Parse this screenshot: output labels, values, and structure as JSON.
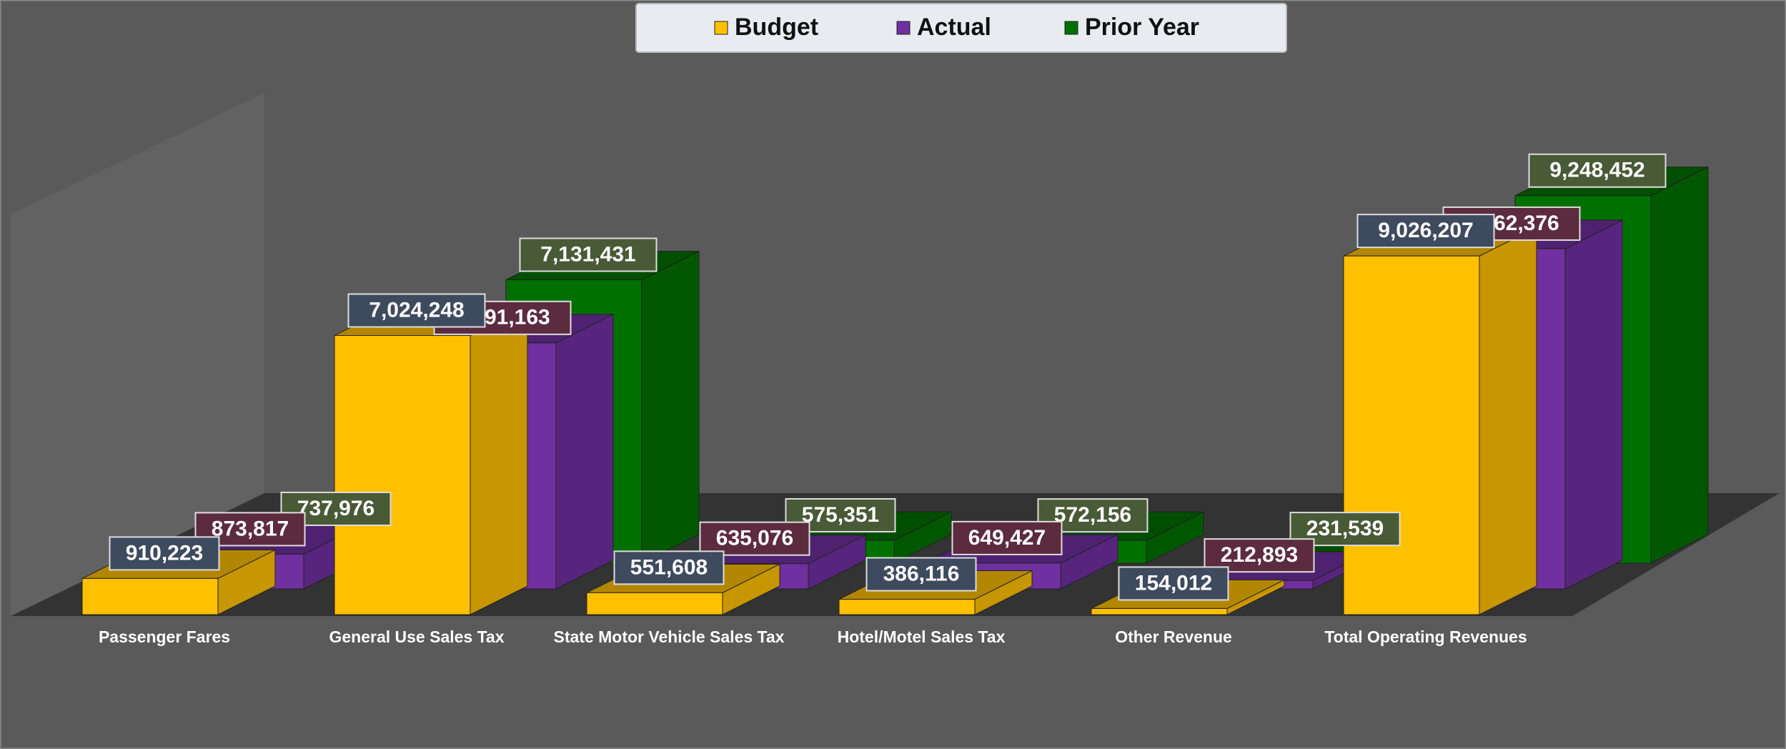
{
  "chart_data": {
    "type": "bar3d",
    "categories": [
      "Passenger Fares",
      "General Use Sales Tax",
      "State Motor Vehicle Sales Tax",
      "Hotel/Motel Sales Tax",
      "Other Revenue",
      "Total Operating Revenues"
    ],
    "series": [
      {
        "name": "Budget",
        "color": "#ffc000",
        "values": [
          910223,
          7024248,
          551608,
          386116,
          154012,
          9026207
        ],
        "value_labels": [
          "910,223",
          "7,024,248",
          "551,608",
          "386,116",
          "154,012",
          "9,026,207"
        ]
      },
      {
        "name": "Actual",
        "color": "#7030a0",
        "values": [
          873817,
          6191163,
          635076,
          649427,
          212893,
          8562376
        ],
        "value_labels": [
          "873,817",
          "6,191,163",
          "635,076",
          "649,427",
          "212,893",
          "8,562,376"
        ]
      },
      {
        "name": "Prior Year",
        "color": "#007000",
        "values": [
          737976,
          7131431,
          575351,
          572156,
          231539,
          9248452
        ],
        "value_labels": [
          "737,976",
          "7,131,431",
          "575,351",
          "572,156",
          "231,539",
          "9,248,452"
        ]
      }
    ],
    "ylim": [
      0,
      10000000
    ],
    "legend": "top"
  }
}
